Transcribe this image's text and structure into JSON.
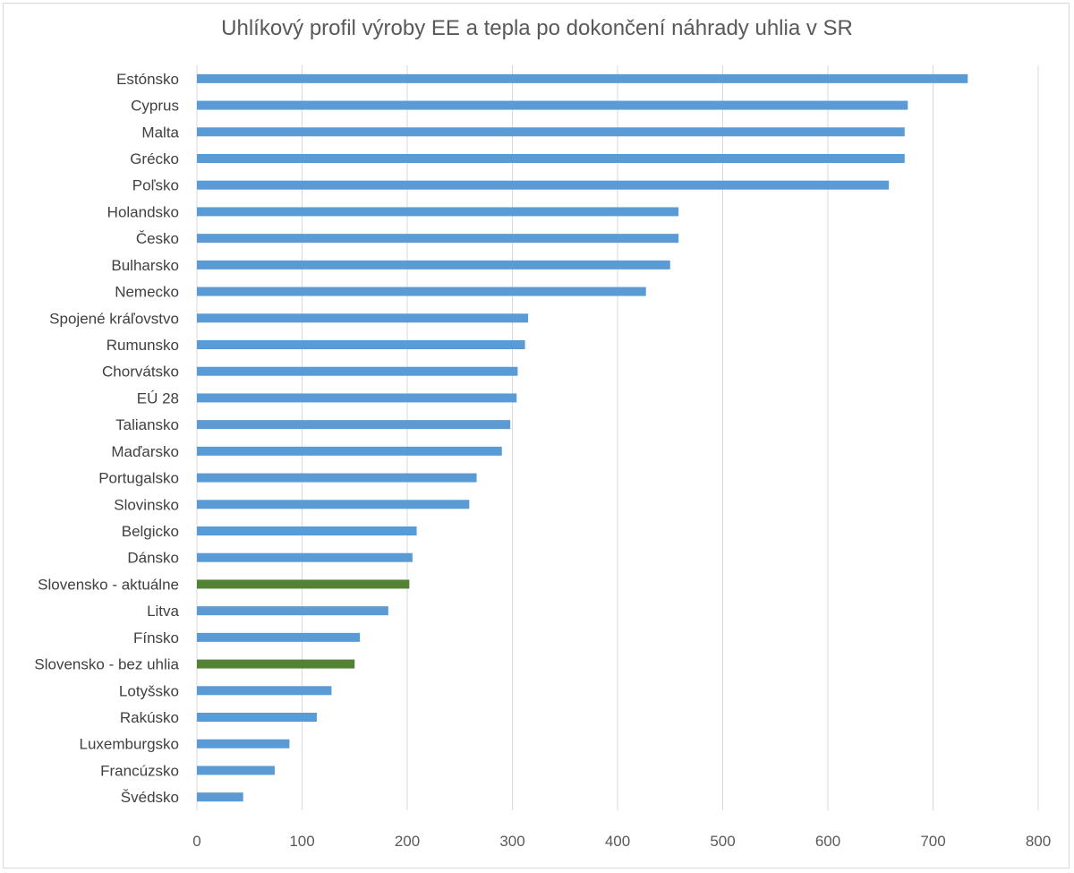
{
  "chart_data": {
    "type": "bar",
    "orientation": "horizontal",
    "title": "Uhlíkový profil výroby EE a tepla po dokončení náhrady uhlia v SR",
    "xlabel": "",
    "ylabel": "",
    "xlim": [
      0,
      800
    ],
    "xticks": [
      0,
      100,
      200,
      300,
      400,
      500,
      600,
      700,
      800
    ],
    "grid": true,
    "legend": "none",
    "colors": {
      "default": "#5b9bd5",
      "highlight": "#548235",
      "grid": "#d9d9d9",
      "text": "#404040"
    },
    "categories": [
      "Estónsko",
      "Cyprus",
      "Malta",
      "Grécko",
      "Poľsko",
      "Holandsko",
      "Česko",
      "Bulharsko",
      "Nemecko",
      "Spojené kráľovstvo",
      "Rumunsko",
      "Chorvátsko",
      "EÚ 28",
      "Taliansko",
      "Maďarsko",
      "Portugalsko",
      "Slovinsko",
      "Belgicko",
      "Dánsko",
      "Slovensko - aktuálne",
      "Litva",
      "Fínsko",
      "Slovensko - bez uhlia",
      "Lotyšsko",
      "Rakúsko",
      "Luxemburgsko",
      "Francúzsko",
      "Švédsko"
    ],
    "values": [
      733,
      676,
      673,
      673,
      658,
      458,
      458,
      450,
      427,
      315,
      312,
      305,
      304,
      298,
      290,
      266,
      259,
      209,
      205,
      202,
      182,
      155,
      150,
      128,
      114,
      88,
      74,
      44
    ],
    "highlighted": [
      "Slovensko - aktuálne",
      "Slovensko - bez uhlia"
    ]
  }
}
